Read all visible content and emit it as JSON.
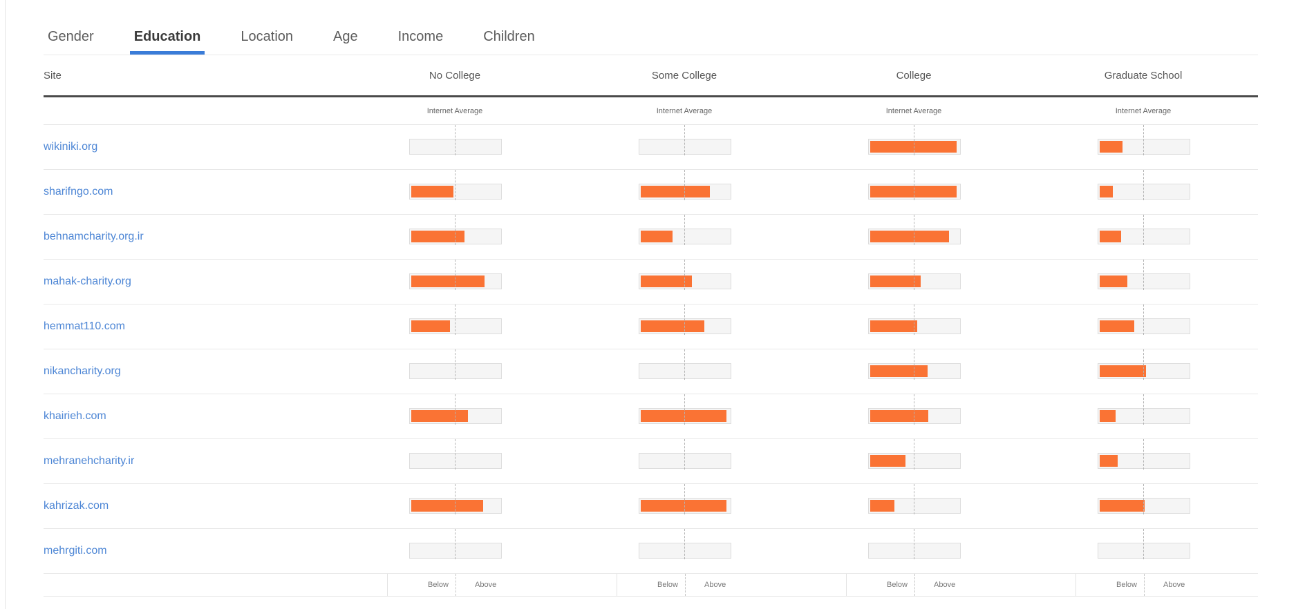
{
  "tabs": {
    "items": [
      {
        "label": "Gender",
        "active": false
      },
      {
        "label": "Education",
        "active": true
      },
      {
        "label": "Location",
        "active": false
      },
      {
        "label": "Age",
        "active": false
      },
      {
        "label": "Income",
        "active": false
      },
      {
        "label": "Children",
        "active": false
      }
    ]
  },
  "table": {
    "site_header": "Site",
    "columns": [
      "No College",
      "Some College",
      "College",
      "Graduate School"
    ],
    "internet_average_label": "Internet Average",
    "footer_below": "Below",
    "footer_above": "Above",
    "rows": [
      {
        "site": "wikiniki.org",
        "values": [
          0,
          0,
          98,
          26
        ]
      },
      {
        "site": "sharifngo.com",
        "values": [
          48,
          78,
          98,
          15
        ]
      },
      {
        "site": "behnamcharity.org.ir",
        "values": [
          60,
          36,
          89,
          24
        ]
      },
      {
        "site": "mahak-charity.org",
        "values": [
          83,
          58,
          57,
          31
        ]
      },
      {
        "site": "hemmat110.com",
        "values": [
          44,
          72,
          53,
          39
        ]
      },
      {
        "site": "nikancharity.org",
        "values": [
          0,
          0,
          65,
          52
        ]
      },
      {
        "site": "khairieh.com",
        "values": [
          64,
          97,
          66,
          18
        ]
      },
      {
        "site": "mehranehcharity.ir",
        "values": [
          0,
          0,
          40,
          20
        ]
      },
      {
        "site": "kahrizak.com",
        "values": [
          81,
          97,
          27,
          51
        ]
      },
      {
        "site": "mehrgiti.com",
        "values": [
          0,
          0,
          0,
          0
        ]
      }
    ]
  },
  "colors": {
    "bar_orange": "#fa7334",
    "active_tab_underline": "#3a7cd8",
    "site_link_blue": "#4d86d5",
    "header_rule_dark": "#4a4a4a"
  }
}
